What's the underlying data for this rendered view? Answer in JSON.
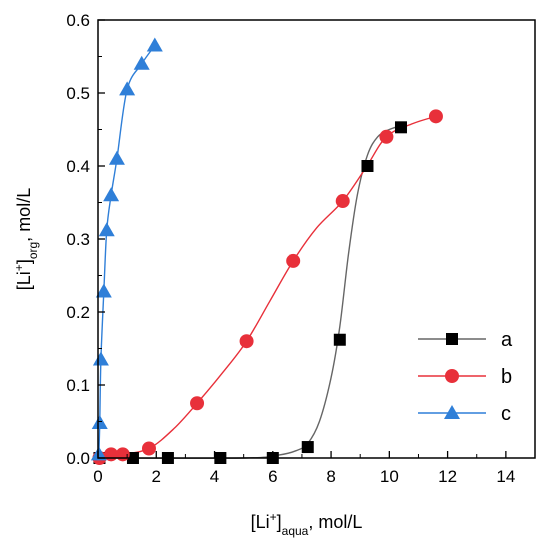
{
  "chart_data": {
    "type": "scatter",
    "xlabel": {
      "base": "[Li",
      "sup": "+",
      "close": "]",
      "sub": "aqua",
      "unit": ", mol/L"
    },
    "ylabel": {
      "base": "[Li",
      "sup": "+",
      "close": "]",
      "sub": "org",
      "unit": ", mol/L"
    },
    "xlim": [
      0,
      15
    ],
    "ylim": [
      0,
      0.6
    ],
    "xticks": [
      0,
      2,
      4,
      6,
      8,
      10,
      12,
      14
    ],
    "yticks": [
      0.0,
      0.1,
      0.2,
      0.3,
      0.4,
      0.5,
      0.6
    ],
    "ytick_labels": [
      "0.0",
      "0.1",
      "0.2",
      "0.3",
      "0.4",
      "0.5",
      "0.6"
    ],
    "grid": false,
    "legend_position": "lower-right",
    "series": [
      {
        "name": "a",
        "marker": "square",
        "color": "#000000",
        "line_color": "#666666",
        "points": [
          [
            0.05,
            0.0
          ],
          [
            1.2,
            0.0
          ],
          [
            2.4,
            0.0
          ],
          [
            4.2,
            0.0
          ],
          [
            6.0,
            0.0
          ],
          [
            7.2,
            0.015
          ],
          [
            8.3,
            0.162
          ],
          [
            9.25,
            0.4
          ],
          [
            10.4,
            0.453
          ]
        ],
        "curve": [
          [
            0,
            0.0
          ],
          [
            5.0,
            0.0
          ],
          [
            6.2,
            0.004
          ],
          [
            6.8,
            0.01
          ],
          [
            7.2,
            0.02
          ],
          [
            7.6,
            0.05
          ],
          [
            8.0,
            0.11
          ],
          [
            8.3,
            0.18
          ],
          [
            8.6,
            0.28
          ],
          [
            8.9,
            0.36
          ],
          [
            9.25,
            0.415
          ],
          [
            9.6,
            0.44
          ],
          [
            10.0,
            0.45
          ],
          [
            10.4,
            0.455
          ]
        ]
      },
      {
        "name": "b",
        "marker": "circle",
        "color": "#e8303a",
        "line_color": "#e8303a",
        "points": [
          [
            0.05,
            0.0
          ],
          [
            0.45,
            0.005
          ],
          [
            0.85,
            0.005
          ],
          [
            1.75,
            0.013
          ],
          [
            3.4,
            0.075
          ],
          [
            5.1,
            0.16
          ],
          [
            6.7,
            0.27
          ],
          [
            8.4,
            0.352
          ],
          [
            9.9,
            0.44
          ],
          [
            11.6,
            0.468
          ]
        ],
        "curve": [
          [
            0.05,
            0.0
          ],
          [
            0.45,
            0.005
          ],
          [
            0.85,
            0.005
          ],
          [
            1.75,
            0.013
          ],
          [
            2.6,
            0.04
          ],
          [
            3.4,
            0.075
          ],
          [
            4.3,
            0.118
          ],
          [
            5.1,
            0.16
          ],
          [
            5.9,
            0.215
          ],
          [
            6.7,
            0.27
          ],
          [
            7.5,
            0.315
          ],
          [
            8.4,
            0.352
          ],
          [
            9.2,
            0.398
          ],
          [
            9.9,
            0.44
          ],
          [
            10.8,
            0.458
          ],
          [
            11.6,
            0.468
          ]
        ]
      },
      {
        "name": "c",
        "marker": "triangle",
        "color": "#2f7fd8",
        "line_color": "#2f7fd8",
        "points": [
          [
            0.03,
            0.005
          ],
          [
            0.06,
            0.048
          ],
          [
            0.1,
            0.135
          ],
          [
            0.2,
            0.228
          ],
          [
            0.3,
            0.312
          ],
          [
            0.45,
            0.36
          ],
          [
            0.65,
            0.41
          ],
          [
            1.0,
            0.505
          ],
          [
            1.5,
            0.54
          ],
          [
            1.95,
            0.565
          ]
        ],
        "curve": [
          [
            0.03,
            0.005
          ],
          [
            0.06,
            0.048
          ],
          [
            0.1,
            0.135
          ],
          [
            0.2,
            0.228
          ],
          [
            0.3,
            0.312
          ],
          [
            0.45,
            0.36
          ],
          [
            0.65,
            0.41
          ],
          [
            1.0,
            0.505
          ],
          [
            1.5,
            0.54
          ],
          [
            1.95,
            0.565
          ]
        ]
      }
    ]
  }
}
